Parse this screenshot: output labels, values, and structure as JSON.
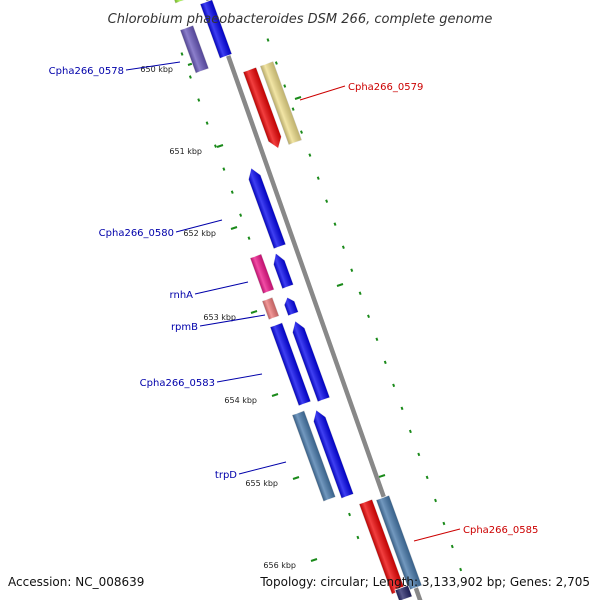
{
  "map": {
    "title": "Chlorobium phaeobacteroides DSM 266, complete genome",
    "accession": "Accession: NC_008639",
    "summary": "Topology: circular; Length: 3,133,902 bp; Genes: 2,705",
    "colors": {
      "backbone": "#888888",
      "tick": "#1a8a1a",
      "forward_label": "#0000aa",
      "reverse_label": "#cc0000"
    },
    "kbp_marks": [
      "650 kbp",
      "651 kbp",
      "652 kbp",
      "653 kbp",
      "654 kbp",
      "655 kbp",
      "656 kbp"
    ],
    "forward_labels": [
      {
        "text": "Cpha266_0578"
      },
      {
        "text": "Cpha266_0580"
      },
      {
        "text": "rnhA"
      },
      {
        "text": "rpmB"
      },
      {
        "text": "Cpha266_0583"
      },
      {
        "text": "trpD"
      }
    ],
    "reverse_labels": [
      {
        "text": "Cpha266_0579"
      },
      {
        "text": "Cpha266_0585"
      }
    ],
    "gene_colors": {
      "blue": "#0000ee",
      "slate": "#6655bb",
      "lime": "#99ee33",
      "red": "#ee0000",
      "cream": "#eedd88",
      "magenta": "#ee1188",
      "salmon": "#ee7777",
      "steel": "#4477aa",
      "navy": "#222266"
    }
  }
}
